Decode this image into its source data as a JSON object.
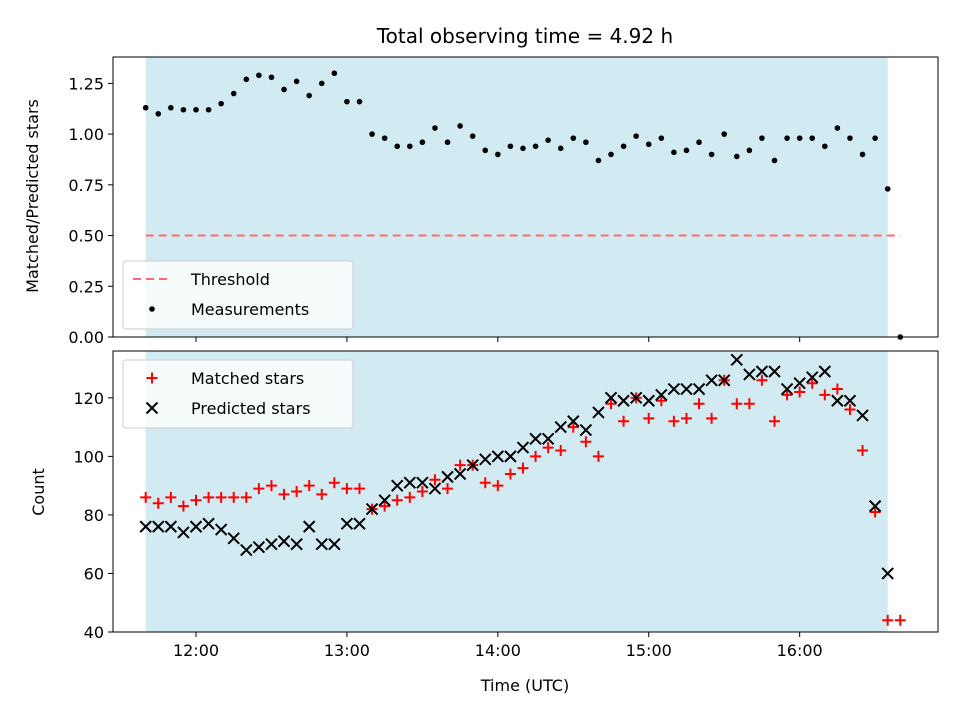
{
  "colors": {
    "shade": "#add8e6",
    "threshold": "#ff6b6b",
    "measurement": "#000000",
    "matched": "#ff0000",
    "predicted": "#000000"
  },
  "chart_data": [
    {
      "type": "scatter",
      "title": "Total observing time = 4.92 h",
      "xlabel": "",
      "ylabel": "Matched/Predicted stars",
      "ylim": [
        0,
        1.38
      ],
      "yticks": [
        0.0,
        0.25,
        0.5,
        0.75,
        1.0,
        1.25
      ],
      "ytick_labels": [
        "0.00",
        "0.25",
        "0.50",
        "0.75",
        "1.00",
        "1.25"
      ],
      "xticks": [
        "12:00",
        "13:00",
        "14:00",
        "15:00",
        "16:00"
      ],
      "xlim": [
        "11:27",
        "16:55"
      ],
      "shaded_span": [
        "11:40",
        "16:35"
      ],
      "threshold": 0.5,
      "threshold_span": [
        "11:40",
        "16:40"
      ],
      "legend_position": "lower-left",
      "series": [
        {
          "name": "Threshold",
          "kind": "dashed-line"
        },
        {
          "name": "Measurements",
          "kind": "points",
          "x": [
            "11:40",
            "11:45",
            "11:50",
            "11:55",
            "12:00",
            "12:05",
            "12:10",
            "12:15",
            "12:20",
            "12:25",
            "12:30",
            "12:35",
            "12:40",
            "12:45",
            "12:50",
            "12:55",
            "13:00",
            "13:05",
            "13:10",
            "13:15",
            "13:20",
            "13:25",
            "13:30",
            "13:35",
            "13:40",
            "13:45",
            "13:50",
            "13:55",
            "14:00",
            "14:05",
            "14:10",
            "14:15",
            "14:20",
            "14:25",
            "14:30",
            "14:35",
            "14:40",
            "14:45",
            "14:50",
            "14:55",
            "15:00",
            "15:05",
            "15:10",
            "15:15",
            "15:20",
            "15:25",
            "15:30",
            "15:35",
            "15:40",
            "15:45",
            "15:50",
            "15:55",
            "16:00",
            "16:05",
            "16:10",
            "16:15",
            "16:20",
            "16:25",
            "16:30",
            "16:35",
            "16:40"
          ],
          "y": [
            1.13,
            1.1,
            1.13,
            1.12,
            1.12,
            1.12,
            1.15,
            1.2,
            1.27,
            1.29,
            1.28,
            1.22,
            1.26,
            1.19,
            1.25,
            1.3,
            1.16,
            1.16,
            1.0,
            0.98,
            0.94,
            0.94,
            0.96,
            1.03,
            0.96,
            1.04,
            0.99,
            0.92,
            0.9,
            0.94,
            0.93,
            0.94,
            0.97,
            0.93,
            0.98,
            0.96,
            0.87,
            0.9,
            0.94,
            0.99,
            0.95,
            0.98,
            0.91,
            0.92,
            0.96,
            0.9,
            1.0,
            0.89,
            0.92,
            0.98,
            0.87,
            0.98,
            0.98,
            0.98,
            0.94,
            1.03,
            0.98,
            0.9,
            0.98,
            0.73,
            0.0
          ]
        }
      ]
    },
    {
      "type": "scatter",
      "title": "",
      "xlabel": "Time (UTC)",
      "ylabel": "Count",
      "ylim": [
        40,
        136
      ],
      "yticks": [
        40,
        60,
        80,
        100,
        120
      ],
      "ytick_labels": [
        "40",
        "60",
        "80",
        "100",
        "120"
      ],
      "xticks": [
        "12:00",
        "13:00",
        "14:00",
        "15:00",
        "16:00"
      ],
      "xlim": [
        "11:27",
        "16:55"
      ],
      "shaded_span": [
        "11:40",
        "16:35"
      ],
      "legend_position": "upper-left",
      "series": [
        {
          "name": "Matched stars",
          "marker": "plus",
          "x": [
            "11:40",
            "11:45",
            "11:50",
            "11:55",
            "12:00",
            "12:05",
            "12:10",
            "12:15",
            "12:20",
            "12:25",
            "12:30",
            "12:35",
            "12:40",
            "12:45",
            "12:50",
            "12:55",
            "13:00",
            "13:05",
            "13:10",
            "13:15",
            "13:20",
            "13:25",
            "13:30",
            "13:35",
            "13:40",
            "13:45",
            "13:50",
            "13:55",
            "14:00",
            "14:05",
            "14:10",
            "14:15",
            "14:20",
            "14:25",
            "14:30",
            "14:35",
            "14:40",
            "14:45",
            "14:50",
            "14:55",
            "15:00",
            "15:05",
            "15:10",
            "15:15",
            "15:20",
            "15:25",
            "15:30",
            "15:35",
            "15:40",
            "15:45",
            "15:50",
            "15:55",
            "16:00",
            "16:05",
            "16:10",
            "16:15",
            "16:20",
            "16:25",
            "16:30",
            "16:35",
            "16:40"
          ],
          "y": [
            86,
            84,
            86,
            83,
            85,
            86,
            86,
            86,
            86,
            89,
            90,
            87,
            88,
            90,
            87,
            91,
            89,
            89,
            82,
            83,
            85,
            86,
            88,
            92,
            89,
            97,
            97,
            91,
            90,
            94,
            96,
            100,
            103,
            102,
            110,
            105,
            100,
            118,
            112,
            120,
            113,
            119,
            112,
            113,
            118,
            113,
            126,
            118,
            118,
            126,
            112,
            121,
            122,
            125,
            121,
            123,
            116,
            102,
            81,
            44,
            44
          ]
        },
        {
          "name": "Predicted stars",
          "marker": "x",
          "x": [
            "11:40",
            "11:45",
            "11:50",
            "11:55",
            "12:00",
            "12:05",
            "12:10",
            "12:15",
            "12:20",
            "12:25",
            "12:30",
            "12:35",
            "12:40",
            "12:45",
            "12:50",
            "12:55",
            "13:00",
            "13:05",
            "13:10",
            "13:15",
            "13:20",
            "13:25",
            "13:30",
            "13:35",
            "13:40",
            "13:45",
            "13:50",
            "13:55",
            "14:00",
            "14:05",
            "14:10",
            "14:15",
            "14:20",
            "14:25",
            "14:30",
            "14:35",
            "14:40",
            "14:45",
            "14:50",
            "14:55",
            "15:00",
            "15:05",
            "15:10",
            "15:15",
            "15:20",
            "15:25",
            "15:30",
            "15:35",
            "15:40",
            "15:45",
            "15:50",
            "15:55",
            "16:00",
            "16:05",
            "16:10",
            "16:15",
            "16:20",
            "16:25",
            "16:30",
            "16:35"
          ],
          "y": [
            76,
            76,
            76,
            74,
            76,
            77,
            75,
            72,
            68,
            69,
            70,
            71,
            70,
            76,
            70,
            70,
            77,
            77,
            82,
            85,
            90,
            91,
            91,
            89,
            93,
            94,
            97,
            99,
            100,
            100,
            103,
            106,
            106,
            110,
            112,
            109,
            115,
            120,
            119,
            120,
            119,
            121,
            123,
            123,
            123,
            126,
            126,
            133,
            128,
            129,
            129,
            123,
            125,
            127,
            129,
            119,
            119,
            114,
            83,
            60
          ]
        }
      ]
    }
  ]
}
